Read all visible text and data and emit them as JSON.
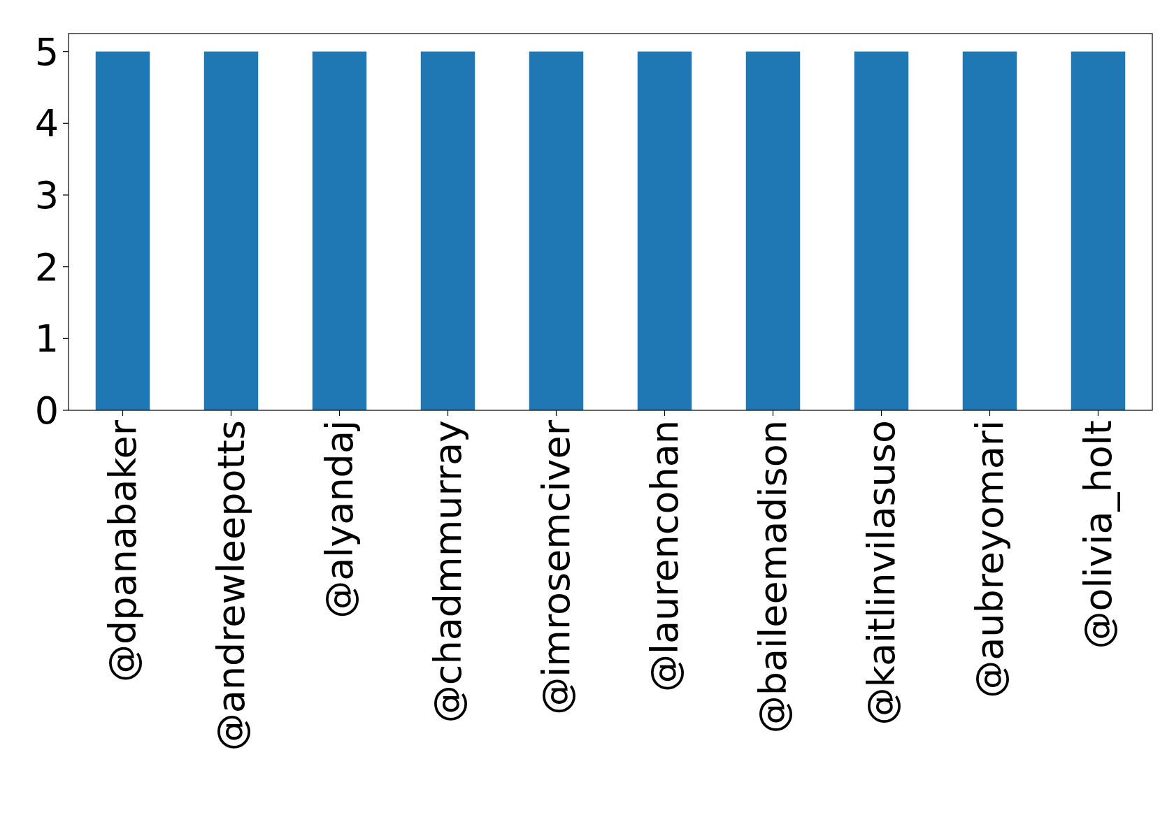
{
  "chart_data": {
    "type": "bar",
    "categories": [
      "@dpanabaker",
      "@andrewleepotts",
      "@alyandaj",
      "@chadmmurray",
      "@imrosemciver",
      "@laurencohan",
      "@baileemadison",
      "@kaitlinvilasuso",
      "@aubreyomari",
      "@olivia_holt"
    ],
    "values": [
      5,
      5,
      5,
      5,
      5,
      5,
      5,
      5,
      5,
      5
    ],
    "color": "#1f77b4",
    "ylim": [
      0,
      5.25
    ],
    "yticks": [
      0,
      1,
      2,
      3,
      4,
      5
    ],
    "grid": false
  }
}
